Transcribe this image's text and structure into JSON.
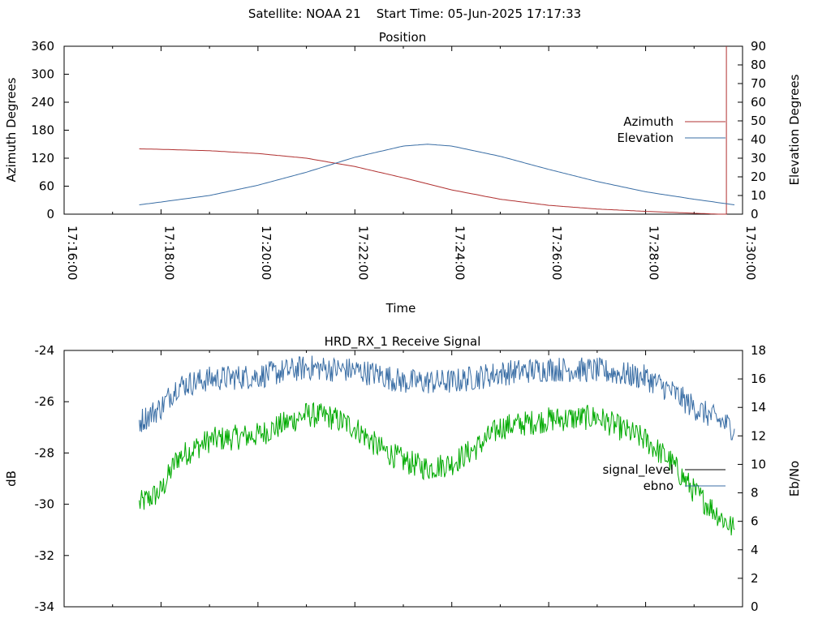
{
  "header": {
    "title": "Satellite: NOAA 21    Start Time: 05-Jun-2025 17:17:33"
  },
  "chart_data": [
    {
      "id": "position",
      "type": "line",
      "title": "Position",
      "xlabel": "Time",
      "ylabel_left": "Azimuth Degrees",
      "ylabel_right": "Elevation Degrees",
      "xlim_minutes": [
        0,
        14
      ],
      "x_ticks": [
        {
          "label": "17:16:00",
          "value": 0
        },
        {
          "label": "17:18:00",
          "value": 2
        },
        {
          "label": "17:20:00",
          "value": 4
        },
        {
          "label": "17:22:00",
          "value": 6
        },
        {
          "label": "17:24:00",
          "value": 8
        },
        {
          "label": "17:26:00",
          "value": 10
        },
        {
          "label": "17:28:00",
          "value": 12
        },
        {
          "label": "17:30:00",
          "value": 14
        }
      ],
      "ylim_left": [
        0,
        360
      ],
      "yticks_left": [
        "0",
        "60",
        "120",
        "180",
        "240",
        "300",
        "360"
      ],
      "ylim_right": [
        0,
        90
      ],
      "yticks_right": [
        "0",
        "10",
        "20",
        "30",
        "40",
        "50",
        "60",
        "70",
        "80",
        "90"
      ],
      "legend_position": "right",
      "series": [
        {
          "name": "Azimuth",
          "axis": "left",
          "color": "#b03030",
          "points": [
            [
              "17:17:33",
              140
            ],
            [
              "17:18:00",
              139
            ],
            [
              "17:19:00",
              136
            ],
            [
              "17:20:00",
              130
            ],
            [
              "17:21:00",
              120
            ],
            [
              "17:22:00",
              102
            ],
            [
              "17:23:00",
              78
            ],
            [
              "17:24:00",
              52
            ],
            [
              "17:25:00",
              32
            ],
            [
              "17:26:00",
              19
            ],
            [
              "17:27:00",
              11
            ],
            [
              "17:28:00",
              6
            ],
            [
              "17:29:00",
              2
            ],
            [
              "17:29:30",
              0
            ],
            [
              "17:29:40",
              0
            ],
            [
              "17:29:40",
              360
            ]
          ]
        },
        {
          "name": "Elevation",
          "axis": "right",
          "color": "#3a6ea5",
          "points": [
            [
              "17:17:33",
              5
            ],
            [
              "17:18:00",
              6.5
            ],
            [
              "17:19:00",
              10
            ],
            [
              "17:20:00",
              15.5
            ],
            [
              "17:21:00",
              22.5
            ],
            [
              "17:22:00",
              30.5
            ],
            [
              "17:23:00",
              36.5
            ],
            [
              "17:23:30",
              37.5
            ],
            [
              "17:24:00",
              36.5
            ],
            [
              "17:25:00",
              31
            ],
            [
              "17:26:00",
              24
            ],
            [
              "17:27:00",
              17.5
            ],
            [
              "17:28:00",
              12
            ],
            [
              "17:29:00",
              8
            ],
            [
              "17:29:50",
              5
            ]
          ]
        }
      ]
    },
    {
      "id": "receive-signal",
      "type": "line",
      "title": "HRD_RX_1 Receive Signal",
      "ylabel_left": "dB",
      "ylabel_right": "Eb/No",
      "xlim_minutes": [
        0,
        14
      ],
      "ylim_left": [
        -34,
        -24
      ],
      "yticks_left": [
        "-34",
        "-32",
        "-30",
        "-28",
        "-26",
        "-24"
      ],
      "ylim_right": [
        0,
        18
      ],
      "yticks_right": [
        "0",
        "2",
        "4",
        "6",
        "8",
        "10",
        "12",
        "14",
        "16",
        "18"
      ],
      "legend_position": "right",
      "series": [
        {
          "name": "signal_level",
          "legend_color": "#000000",
          "axis": "left",
          "color": "#00aa00",
          "noise_amplitude": 0.5,
          "points": [
            [
              "17:17:33",
              -30
            ],
            [
              "17:18:00",
              -29.5
            ],
            [
              "17:18:20",
              -28.2
            ],
            [
              "17:19:00",
              -27.5
            ],
            [
              "17:20:00",
              -27.3
            ],
            [
              "17:21:00",
              -26.5
            ],
            [
              "17:21:30",
              -26.6
            ],
            [
              "17:22:00",
              -27
            ],
            [
              "17:22:30",
              -27.8
            ],
            [
              "17:23:00",
              -28.3
            ],
            [
              "17:23:30",
              -28.6
            ],
            [
              "17:24:00",
              -28.4
            ],
            [
              "17:24:30",
              -27.8
            ],
            [
              "17:25:00",
              -27
            ],
            [
              "17:26:00",
              -26.7
            ],
            [
              "17:27:00",
              -26.6
            ],
            [
              "17:28:00",
              -27.5
            ],
            [
              "17:28:30",
              -28.3
            ],
            [
              "17:29:00",
              -29.5
            ],
            [
              "17:29:50",
              -31
            ]
          ]
        },
        {
          "name": "ebno",
          "axis": "right",
          "color": "#3a6ea5",
          "noise_amplitude": 0.5,
          "points": [
            [
              "17:17:33",
              13
            ],
            [
              "17:18:00",
              14
            ],
            [
              "17:18:20",
              15.5
            ],
            [
              "17:19:00",
              16
            ],
            [
              "17:20:00",
              16.2
            ],
            [
              "17:21:00",
              16.8
            ],
            [
              "17:22:00",
              16.6
            ],
            [
              "17:22:30",
              16.3
            ],
            [
              "17:23:00",
              15.8
            ],
            [
              "17:24:00",
              15.8
            ],
            [
              "17:25:00",
              16.4
            ],
            [
              "17:26:00",
              16.7
            ],
            [
              "17:27:00",
              16.6
            ],
            [
              "17:28:00",
              16.1
            ],
            [
              "17:28:30",
              15.2
            ],
            [
              "17:29:00",
              14
            ],
            [
              "17:29:50",
              12.5
            ]
          ]
        }
      ]
    }
  ]
}
